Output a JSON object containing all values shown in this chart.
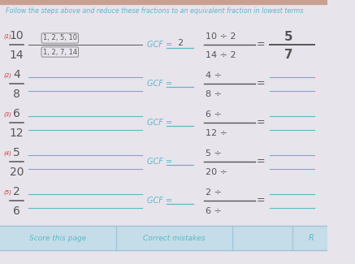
{
  "bg_color": "#e8e4ec",
  "white_bg": "#ebe8ee",
  "title": "Follow the steps above and reduce these fractions to an equivalent fraction in lowest terms",
  "title_color": "#5bb8c8",
  "title_fontsize": 5.8,
  "number_color": "#cc3333",
  "text_color": "#5bb8c8",
  "dark_text": "#555555",
  "gcf_color": "#444444",
  "footer_bg": "#c5dde8",
  "footer_border": "#a0c4d8",
  "top_bar_color": "#c9a090",
  "problems": [
    {
      "num": "(1)",
      "frac_top": "10",
      "frac_bot": "14",
      "has_factors": true,
      "factors_top": "1, 2, 5, 10",
      "factors_bot": "1, 2, 7, 14",
      "gcf_val": "2",
      "div_top": "10 ÷ 2",
      "div_bot": "14 ÷ 2",
      "ans_top": "5",
      "ans_bot": "7"
    },
    {
      "num": "(2)",
      "frac_top": "4",
      "frac_bot": "8",
      "has_factors": false,
      "factors_top": "",
      "factors_bot": "",
      "gcf_val": "",
      "div_top": "4 ÷",
      "div_bot": "8 ÷",
      "ans_top": "",
      "ans_bot": ""
    },
    {
      "num": "(3)",
      "frac_top": "6",
      "frac_bot": "12",
      "has_factors": false,
      "factors_top": "",
      "factors_bot": "",
      "gcf_val": "",
      "div_top": "6 ÷",
      "div_bot": "12 ÷",
      "ans_top": "",
      "ans_bot": ""
    },
    {
      "num": "(4)",
      "frac_top": "5",
      "frac_bot": "20",
      "has_factors": false,
      "factors_top": "",
      "factors_bot": "",
      "gcf_val": "",
      "div_top": "5 ÷",
      "div_bot": "20 ÷",
      "ans_top": "",
      "ans_bot": ""
    },
    {
      "num": "(5)",
      "frac_top": "2",
      "frac_bot": "6",
      "has_factors": false,
      "factors_top": "",
      "factors_bot": "",
      "gcf_val": "",
      "div_top": "2 ÷",
      "div_bot": "6 ÷",
      "ans_top": "",
      "ans_bot": ""
    }
  ],
  "footer_left": "Score this page",
  "footer_mid": "Correct mistakes",
  "footer_right": "R"
}
